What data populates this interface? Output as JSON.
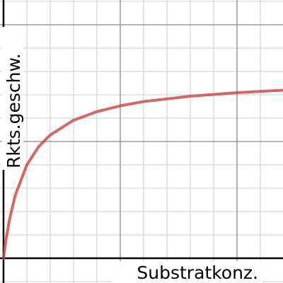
{
  "chart_data": {
    "type": "line",
    "x_label": "Substratkonz.",
    "y_label": "Rkts.geschw.",
    "x": [
      0,
      0.1,
      0.25,
      0.5,
      1,
      1.5,
      2,
      3,
      4,
      5,
      6,
      8,
      10,
      12
    ],
    "series": [
      {
        "color": "#c74440",
        "values": [
          0,
          0.75,
          1.63,
          2.69,
          4.0,
          4.77,
          5.28,
          5.91,
          6.28,
          6.53,
          6.71,
          6.94,
          7.09,
          7.2
        ]
      }
    ],
    "xlim": [
      -0.15,
      11.97
    ],
    "ylim": [
      -1.06,
      11.06
    ],
    "xticks": [
      0,
      1,
      2,
      3,
      4,
      5,
      6,
      7,
      8,
      9,
      10,
      11
    ],
    "yticks": [
      -1,
      0,
      1,
      2,
      3,
      4,
      5,
      6,
      7,
      8,
      9,
      10,
      11
    ],
    "grid": true
  }
}
